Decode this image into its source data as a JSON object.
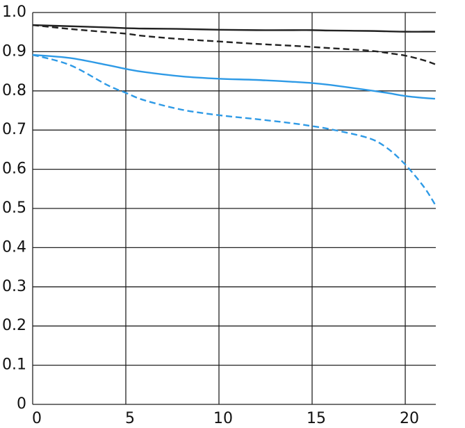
{
  "chart_data": {
    "type": "line",
    "x": [
      0,
      2,
      4,
      5,
      6,
      8,
      10,
      12,
      14,
      15,
      16,
      18,
      19,
      20,
      21,
      21.6
    ],
    "series": [
      {
        "color": "#222222",
        "dashed": false,
        "values": [
          0.968,
          0.965,
          0.962,
          0.96,
          0.959,
          0.958,
          0.956,
          0.955,
          0.955,
          0.955,
          0.954,
          0.953,
          0.952,
          0.951,
          0.951,
          0.951
        ]
      },
      {
        "color": "#222222",
        "dashed": true,
        "values": [
          0.968,
          0.958,
          0.95,
          0.946,
          0.94,
          0.932,
          0.926,
          0.92,
          0.915,
          0.912,
          0.909,
          0.903,
          0.897,
          0.89,
          0.878,
          0.868
        ]
      },
      {
        "color": "#2e9ae6",
        "dashed": false,
        "values": [
          0.892,
          0.884,
          0.866,
          0.856,
          0.848,
          0.837,
          0.831,
          0.828,
          0.823,
          0.82,
          0.815,
          0.802,
          0.795,
          0.787,
          0.782,
          0.78
        ]
      },
      {
        "color": "#2e9ae6",
        "dashed": true,
        "values": [
          0.892,
          0.866,
          0.815,
          0.795,
          0.776,
          0.752,
          0.738,
          0.728,
          0.717,
          0.71,
          0.702,
          0.68,
          0.655,
          0.612,
          0.555,
          0.51
        ]
      }
    ],
    "xlim": [
      0,
      21.64
    ],
    "xticks": [
      0,
      5,
      10,
      15,
      20
    ],
    "ylim": [
      0,
      1
    ],
    "yticks": [
      {
        "value": 1,
        "label": "1.0"
      },
      0.9,
      0.8,
      0.7,
      0.6,
      0.5,
      0.4,
      0.3,
      0.2,
      0.1,
      0
    ],
    "grid": true
  }
}
